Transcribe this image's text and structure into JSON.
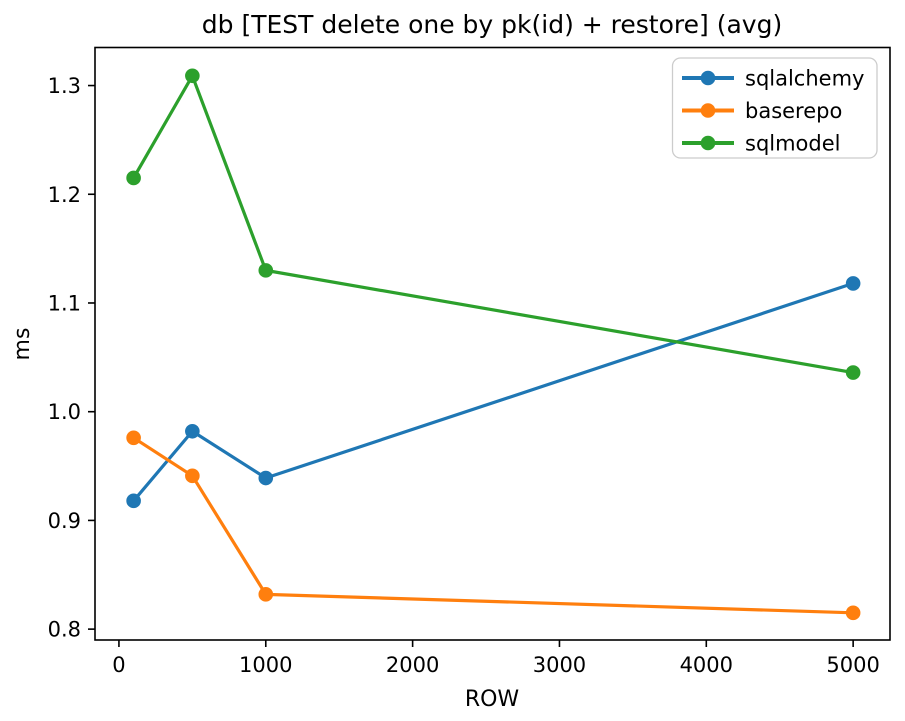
{
  "chart_data": {
    "type": "line",
    "title": "db [TEST delete one by pk(id) + restore] (avg)",
    "xlabel": "ROW",
    "ylabel": "ms",
    "x": [
      100,
      500,
      1000,
      5000
    ],
    "series": [
      {
        "name": "sqlalchemy",
        "color": "#1f77b4",
        "values": [
          0.918,
          0.982,
          0.939,
          1.118
        ]
      },
      {
        "name": "baserepo",
        "color": "#ff7f0e",
        "values": [
          0.976,
          0.941,
          0.832,
          0.815
        ]
      },
      {
        "name": "sqlmodel",
        "color": "#2ca02c",
        "values": [
          1.215,
          1.309,
          1.13,
          1.036
        ]
      }
    ],
    "xticks": {
      "values": [
        0,
        1000,
        2000,
        3000,
        4000,
        5000
      ],
      "labels": [
        "0",
        "1000",
        "2000",
        "3000",
        "4000",
        "5000"
      ]
    },
    "yticks": {
      "values": [
        0.8,
        0.9,
        1.0,
        1.1,
        1.2,
        1.3
      ],
      "labels": [
        "0.8",
        "0.9",
        "1.0",
        "1.1",
        "1.2",
        "1.3"
      ]
    },
    "xlim": [
      -163,
      5251
    ],
    "ylim": [
      0.79,
      1.335
    ],
    "grid": false,
    "legend": {
      "position": "upper right",
      "entries": [
        "sqlalchemy",
        "baserepo",
        "sqlmodel"
      ]
    },
    "marker": "o",
    "axis_color": "#000000",
    "legend_border_color": "#cccccc",
    "background": "#ffffff"
  }
}
